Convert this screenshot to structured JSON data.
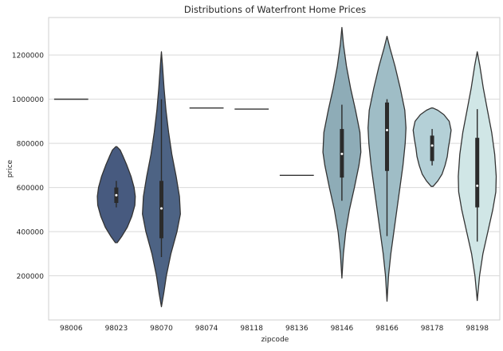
{
  "chart_data": {
    "type": "violin",
    "title": "Distributions of Waterfront Home Prices",
    "xlabel": "zipcode",
    "ylabel": "price",
    "ylim": [
      0,
      1370000
    ],
    "yticks": [
      200000,
      400000,
      600000,
      800000,
      1000000,
      1200000
    ],
    "ytick_labels": [
      "200000",
      "400000",
      "600000",
      "800000",
      "1000000",
      "1200000"
    ],
    "grid": "horizontal",
    "categories": [
      "98006",
      "98023",
      "98070",
      "98074",
      "98118",
      "98136",
      "98146",
      "98166",
      "98178",
      "98198"
    ],
    "violins": [
      {
        "zipcode": "98006",
        "color": "#2f3e5e",
        "flat_value": 1000000
      },
      {
        "zipcode": "98023",
        "color": "#475a7f",
        "min": 350000,
        "max": 785000,
        "q1": 530000,
        "median": 565000,
        "q3": 600000,
        "whisker_low": 510000,
        "whisker_high": 630000,
        "profile": [
          [
            350000,
            0.05
          ],
          [
            380000,
            0.3
          ],
          [
            420000,
            0.58
          ],
          [
            470000,
            0.82
          ],
          [
            520000,
            0.98
          ],
          [
            560000,
            1.0
          ],
          [
            600000,
            0.94
          ],
          [
            650000,
            0.78
          ],
          [
            700000,
            0.56
          ],
          [
            740000,
            0.36
          ],
          [
            770000,
            0.2
          ],
          [
            785000,
            0.03
          ]
        ]
      },
      {
        "zipcode": "98070",
        "color": "#4d6384",
        "min": 60000,
        "max": 1215000,
        "q1": 370000,
        "median": 505000,
        "q3": 630000,
        "whisker_low": 285000,
        "whisker_high": 1000000,
        "profile": [
          [
            60000,
            0.0
          ],
          [
            120000,
            0.12
          ],
          [
            200000,
            0.26
          ],
          [
            300000,
            0.5
          ],
          [
            400000,
            0.82
          ],
          [
            480000,
            1.0
          ],
          [
            560000,
            0.95
          ],
          [
            650000,
            0.78
          ],
          [
            750000,
            0.55
          ],
          [
            850000,
            0.38
          ],
          [
            950000,
            0.24
          ],
          [
            1050000,
            0.14
          ],
          [
            1150000,
            0.06
          ],
          [
            1215000,
            0.0
          ]
        ]
      },
      {
        "zipcode": "98074",
        "color": "#5a7090",
        "flat_value": 960000
      },
      {
        "zipcode": "98118",
        "color": "#6a8399",
        "flat_value": 955000
      },
      {
        "zipcode": "98136",
        "color": "#7895a3",
        "flat_value": 655000
      },
      {
        "zipcode": "98146",
        "color": "#8eacb7",
        "min": 190000,
        "max": 1325000,
        "q1": 645000,
        "median": 752000,
        "q3": 865000,
        "whisker_low": 540000,
        "whisker_high": 975000,
        "profile": [
          [
            190000,
            0.0
          ],
          [
            300000,
            0.08
          ],
          [
            400000,
            0.2
          ],
          [
            500000,
            0.4
          ],
          [
            600000,
            0.66
          ],
          [
            700000,
            0.9
          ],
          [
            760000,
            1.0
          ],
          [
            850000,
            0.95
          ],
          [
            950000,
            0.72
          ],
          [
            1050000,
            0.46
          ],
          [
            1150000,
            0.24
          ],
          [
            1250000,
            0.08
          ],
          [
            1325000,
            0.0
          ]
        ]
      },
      {
        "zipcode": "98166",
        "color": "#9fbdc6",
        "min": 85000,
        "max": 1285000,
        "q1": 675000,
        "median": 860000,
        "q3": 985000,
        "whisker_low": 380000,
        "whisker_high": 1000000,
        "profile": [
          [
            85000,
            0.0
          ],
          [
            200000,
            0.08
          ],
          [
            300000,
            0.2
          ],
          [
            400000,
            0.36
          ],
          [
            500000,
            0.52
          ],
          [
            600000,
            0.68
          ],
          [
            700000,
            0.84
          ],
          [
            800000,
            0.96
          ],
          [
            870000,
            1.0
          ],
          [
            950000,
            0.94
          ],
          [
            1050000,
            0.7
          ],
          [
            1150000,
            0.42
          ],
          [
            1230000,
            0.16
          ],
          [
            1285000,
            0.0
          ]
        ]
      },
      {
        "zipcode": "98178",
        "color": "#b4d0d7",
        "min": 605000,
        "max": 960000,
        "q1": 720000,
        "median": 790000,
        "q3": 835000,
        "whisker_low": 700000,
        "whisker_high": 865000,
        "profile": [
          [
            605000,
            0.05
          ],
          [
            630000,
            0.3
          ],
          [
            660000,
            0.52
          ],
          [
            700000,
            0.68
          ],
          [
            740000,
            0.8
          ],
          [
            780000,
            0.86
          ],
          [
            820000,
            0.94
          ],
          [
            860000,
            1.0
          ],
          [
            900000,
            0.9
          ],
          [
            930000,
            0.62
          ],
          [
            950000,
            0.3
          ],
          [
            960000,
            0.04
          ]
        ]
      },
      {
        "zipcode": "98198",
        "color": "#d0e6e6",
        "min": 88000,
        "max": 1215000,
        "q1": 510000,
        "median": 608000,
        "q3": 825000,
        "whisker_low": 355000,
        "whisker_high": 955000,
        "profile": [
          [
            88000,
            0.0
          ],
          [
            200000,
            0.12
          ],
          [
            300000,
            0.3
          ],
          [
            400000,
            0.56
          ],
          [
            500000,
            0.82
          ],
          [
            580000,
            0.98
          ],
          [
            650000,
            1.0
          ],
          [
            750000,
            0.92
          ],
          [
            850000,
            0.76
          ],
          [
            950000,
            0.54
          ],
          [
            1050000,
            0.32
          ],
          [
            1150000,
            0.14
          ],
          [
            1215000,
            0.0
          ]
        ]
      }
    ]
  }
}
